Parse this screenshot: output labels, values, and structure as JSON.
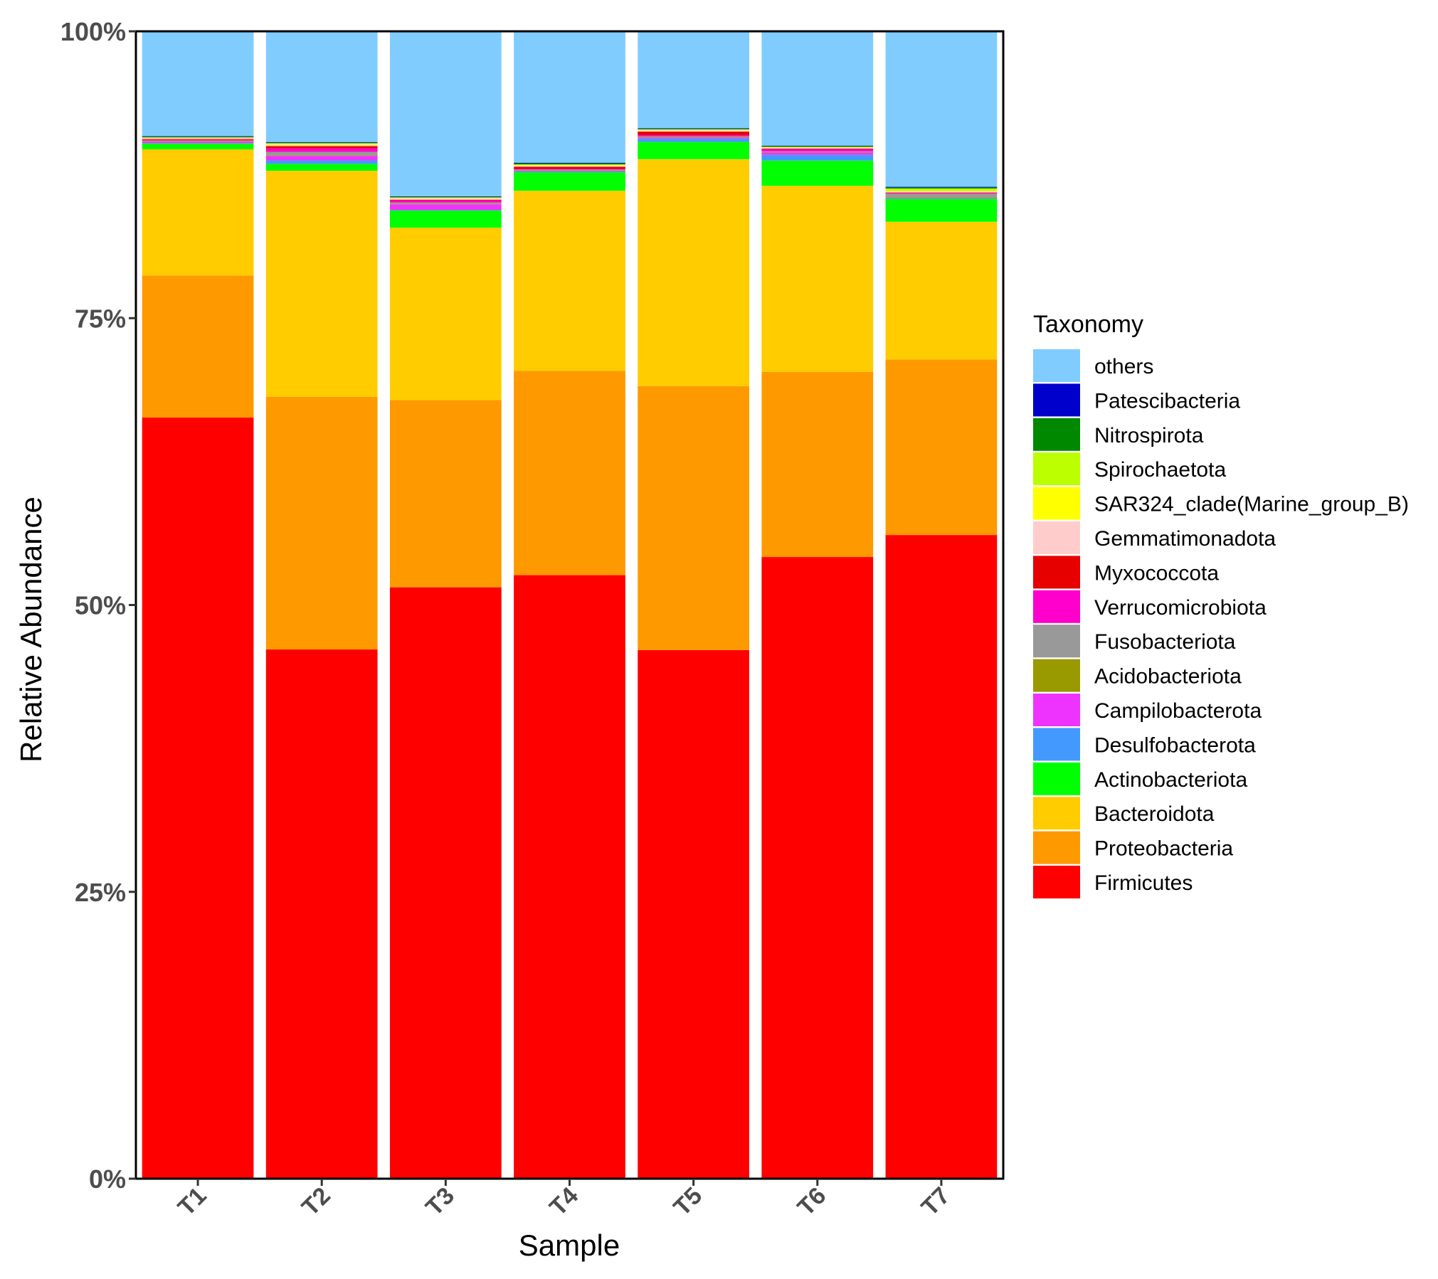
{
  "chart_data": {
    "type": "bar",
    "stacked": true,
    "normalized": true,
    "xlabel": "Sample",
    "ylabel": "Relative Abundance",
    "ylim": [
      0,
      100
    ],
    "y_ticks": [
      "0%",
      "25%",
      "50%",
      "75%",
      "100%"
    ],
    "categories": [
      "T1",
      "T2",
      "T3",
      "T4",
      "T5",
      "T6",
      "T7"
    ],
    "legend_title": "Taxonomy",
    "legend_position": "right",
    "series": [
      {
        "name": "Firmicutes",
        "color": "#FF0000",
        "values": [
          66.4,
          46.1,
          51.8,
          52.6,
          46.1,
          54.1,
          56.1
        ]
      },
      {
        "name": "Proteobacteria",
        "color": "#FF9900",
        "values": [
          12.4,
          22.0,
          16.4,
          17.8,
          23.0,
          16.1,
          15.3
        ]
      },
      {
        "name": "Bacteroidota",
        "color": "#FFCC00",
        "values": [
          11.0,
          19.7,
          15.1,
          15.7,
          19.8,
          16.2,
          12.0
        ]
      },
      {
        "name": "Actinobacteriota",
        "color": "#00FF00",
        "values": [
          0.5,
          0.6,
          1.5,
          1.6,
          1.5,
          2.2,
          2.0
        ]
      },
      {
        "name": "Desulfobacterota",
        "color": "#4499FF",
        "values": [
          0.05,
          0.3,
          0.05,
          0.1,
          0.3,
          0.5,
          0.05
        ]
      },
      {
        "name": "Campilobacterota",
        "color": "#EE33FF",
        "values": [
          0.1,
          0.4,
          0.5,
          0.05,
          0.1,
          0.2,
          0.05
        ]
      },
      {
        "name": "Acidobacteriota",
        "color": "#999900",
        "values": [
          0.05,
          0.05,
          0.05,
          0.05,
          0.05,
          0.05,
          0.05
        ]
      },
      {
        "name": "Fusobacteriota",
        "color": "#999999",
        "values": [
          0.05,
          0.3,
          0.1,
          0.05,
          0.05,
          0.05,
          0.3
        ]
      },
      {
        "name": "Verrucomicrobiota",
        "color": "#FF00CC",
        "values": [
          0.1,
          0.3,
          0.2,
          0.05,
          0.1,
          0.2,
          0.05
        ]
      },
      {
        "name": "Myxococcota",
        "color": "#E60000",
        "values": [
          0.05,
          0.2,
          0.05,
          0.2,
          0.3,
          0.05,
          0.05
        ]
      },
      {
        "name": "Gemmatimonadota",
        "color": "#FFCCCC",
        "values": [
          0.05,
          0.1,
          0.1,
          0.1,
          0.1,
          0.05,
          0.1
        ]
      },
      {
        "name": "SAR324_clade(Marine_group_B)",
        "color": "#FFFF00",
        "values": [
          0.05,
          0.1,
          0.05,
          0.05,
          0.05,
          0.05,
          0.05
        ]
      },
      {
        "name": "Spirochaetota",
        "color": "#BBFF00",
        "values": [
          0.05,
          0.05,
          0.05,
          0.05,
          0.05,
          0.05,
          0.2
        ]
      },
      {
        "name": "Nitrospirota",
        "color": "#008800",
        "values": [
          0.05,
          0.05,
          0.05,
          0.1,
          0.05,
          0.05,
          0.1
        ]
      },
      {
        "name": "Patescibacteria",
        "color": "#0000CC",
        "values": [
          0.05,
          0.05,
          0.05,
          0.05,
          0.05,
          0.05,
          0.05
        ]
      },
      {
        "name": "others",
        "color": "#80CCFF",
        "values": [
          9.15,
          9.65,
          14.45,
          11.45,
          8.45,
          9.95,
          13.55
        ]
      }
    ],
    "legend_order": [
      "others",
      "Patescibacteria",
      "Nitrospirota",
      "Spirochaetota",
      "SAR324_clade(Marine_group_B)",
      "Gemmatimonadota",
      "Myxococcota",
      "Verrucomicrobiota",
      "Fusobacteriota",
      "Acidobacteriota",
      "Campilobacterota",
      "Desulfobacterota",
      "Actinobacteriota",
      "Bacteroidota",
      "Proteobacteria",
      "Firmicutes"
    ]
  }
}
